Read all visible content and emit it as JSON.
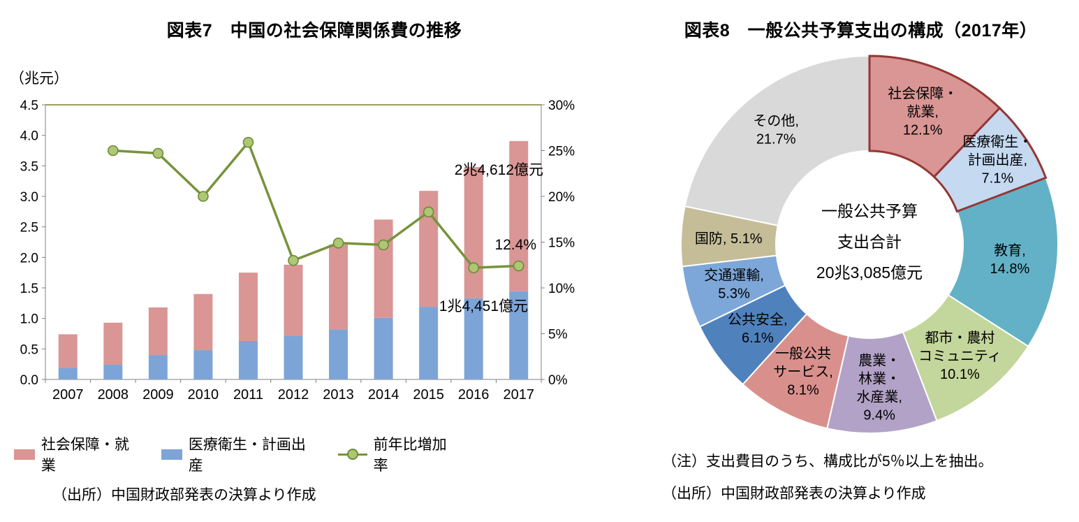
{
  "figure7": {
    "title": "図表7　中国の社会保障関係費の推移",
    "unit_label": "（兆元）",
    "source": "（出所）中国財政部発表の決算より作成",
    "legend": [
      {
        "label": "社会保障・就業",
        "swatch": "#D99694",
        "type": "bar"
      },
      {
        "label": "医療衛生・計画出産",
        "swatch": "#7DA4D7",
        "type": "bar"
      },
      {
        "label": "前年比増加率",
        "swatch": "#77933C",
        "type": "line",
        "marker_fill": "#AEC775",
        "marker_border": "#6E8A3A"
      }
    ]
  },
  "figure8": {
    "title": "図表8　一般公共予算支出の構成（2017年）",
    "note": "（注）支出費目のうち、構成比が5％以上を抽出。",
    "source": "（出所）中国財政部発表の決算より作成"
  },
  "chart_data": [
    {
      "type": "bar",
      "subtype": "stacked_column_with_line",
      "title": "図表7　中国の社会保障関係費の推移",
      "ylabel": "（兆元）",
      "categories": [
        "2007",
        "2008",
        "2009",
        "2010",
        "2011",
        "2012",
        "2013",
        "2014",
        "2015",
        "2016",
        "2017"
      ],
      "series": [
        {
          "name": "社会保障・就業",
          "chart": "bar",
          "stack_position": "top",
          "color": "#D99694",
          "values": [
            0.55,
            0.69,
            0.78,
            0.92,
            1.12,
            1.16,
            1.39,
            1.61,
            1.9,
            2.15,
            2.4612
          ]
        },
        {
          "name": "医療衛生・計画出産",
          "chart": "bar",
          "stack_position": "bottom",
          "color": "#7DA4D7",
          "values": [
            0.19,
            0.24,
            0.4,
            0.48,
            0.63,
            0.72,
            0.82,
            1.01,
            1.19,
            1.33,
            1.4451
          ]
        },
        {
          "name": "前年比増加率",
          "chart": "line",
          "axis": "right",
          "color": "#77933C",
          "marker_fill": "#AEC775",
          "marker_border": "#6E8A3A",
          "values": [
            null,
            25.0,
            24.7,
            20.0,
            25.9,
            13.0,
            14.9,
            14.7,
            18.3,
            12.2,
            12.4
          ]
        }
      ],
      "left_axis": {
        "min": 0,
        "max": 4.5,
        "step": 0.5,
        "unit": "（兆元）"
      },
      "right_axis": {
        "min": 0,
        "max": 30,
        "step": 5,
        "format": "percent"
      },
      "grid": false,
      "legend_position": "bottom",
      "annotations": [
        {
          "text": "2兆4,612億元",
          "refers_to": "2017 社会保障・就業"
        },
        {
          "text": "12.4%",
          "refers_to": "2017 前年比増加率"
        },
        {
          "text": "1兆4,451億元",
          "refers_to": "2017 医療衛生・計画出産"
        }
      ]
    },
    {
      "type": "pie",
      "subtype": "donut",
      "title": "図表8　一般公共予算支出の構成（2017年）",
      "center_label": [
        "一般公共予算",
        "支出合計",
        "20兆3,085億元"
      ],
      "highlight_border_color": "#953735",
      "slices": [
        {
          "label": "社会保障・就業",
          "value": 12.1,
          "color": "#D99694",
          "highlighted": true,
          "label_lines": [
            "社会保障・",
            "就業,",
            "12.1%"
          ]
        },
        {
          "label": "医療衛生・計画出産",
          "value": 7.1,
          "color": "#C5D9F1",
          "highlighted": true,
          "label_lines": [
            "医療衛生・",
            "計画出産,",
            "7.1%"
          ]
        },
        {
          "label": "教育",
          "value": 14.8,
          "color": "#63B1C7",
          "highlighted": false,
          "label_lines": [
            "教育,",
            "14.8%"
          ]
        },
        {
          "label": "都市・農村コミュニティ",
          "value": 10.1,
          "color": "#C3D69B",
          "highlighted": false,
          "label_lines": [
            "都市・農村",
            "コミュニティ",
            "10.1%"
          ]
        },
        {
          "label": "農業・林業・水産業",
          "value": 9.4,
          "color": "#B3A2C7",
          "highlighted": false,
          "label_lines": [
            "農業・",
            "林業・",
            "水産業,",
            "9.4%"
          ]
        },
        {
          "label": "一般公共サービス",
          "value": 8.1,
          "color": "#D9908D",
          "highlighted": false,
          "label_lines": [
            "一般公共",
            "サービス,",
            "8.1%"
          ]
        },
        {
          "label": "公共安全",
          "value": 6.1,
          "color": "#4F81BD",
          "highlighted": false,
          "label_lines": [
            "公共安全,",
            "6.1%"
          ]
        },
        {
          "label": "交通運輸",
          "value": 5.3,
          "color": "#7DA7D9",
          "highlighted": false,
          "label_lines": [
            "交通運輸,",
            "5.3%"
          ]
        },
        {
          "label": "国防",
          "value": 5.1,
          "color": "#C4BD97",
          "highlighted": false,
          "label_lines": [
            "国防, 5.1%"
          ]
        },
        {
          "label": "その他",
          "value": 21.7,
          "color": "#D9D9D9",
          "highlighted": false,
          "label_lines": [
            "その他,",
            "21.7%"
          ]
        }
      ]
    }
  ]
}
